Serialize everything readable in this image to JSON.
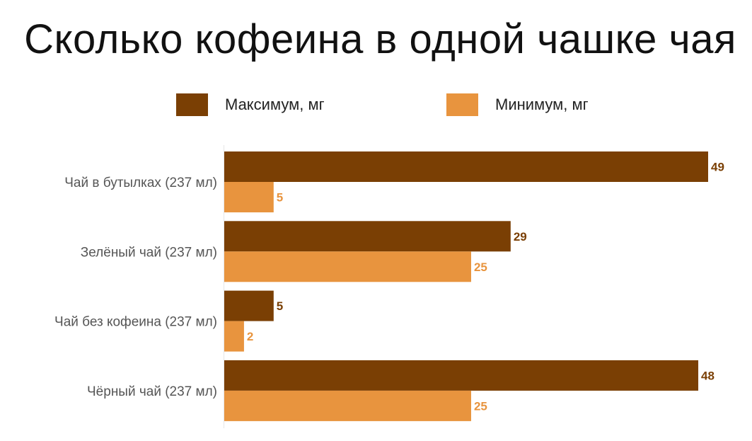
{
  "chart_data": {
    "type": "bar",
    "orientation": "horizontal",
    "title": "Сколько кофеина в одной чашке чая",
    "categories": [
      "Чай в бутылках (237 мл)",
      "Зелёный чай (237 мл)",
      "Чай без кофеина (237 мл)",
      "Чёрный чай (237 мл)"
    ],
    "series": [
      {
        "name": "Максимум, мг",
        "values": [
          49,
          29,
          5,
          48
        ],
        "color": "#7a3f04"
      },
      {
        "name": "Минимум, мг",
        "values": [
          5,
          25,
          2,
          25
        ],
        "color": "#e8943e"
      }
    ],
    "xlim": [
      0,
      49
    ],
    "xlabel": "",
    "ylabel": "",
    "grid": false,
    "legend_position": "top"
  }
}
